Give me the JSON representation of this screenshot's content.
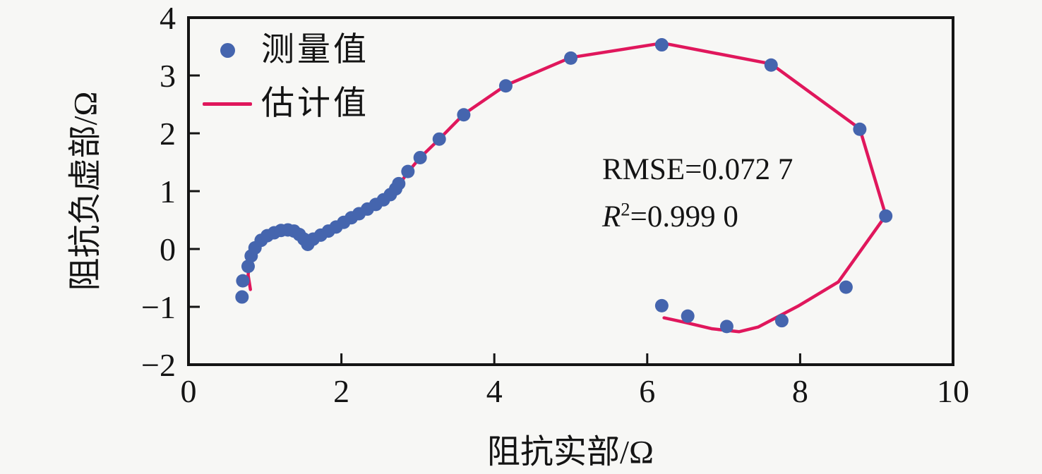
{
  "chart_data": {
    "type": "scatter",
    "title": "",
    "xlabel": "阻抗实部/Ω",
    "ylabel": "阻抗负虚部/Ω",
    "xlim": [
      0,
      10
    ],
    "ylim": [
      -2,
      4
    ],
    "x_ticks": [
      "0",
      "2",
      "4",
      "6",
      "8",
      "10"
    ],
    "x_tick_values": [
      0,
      2,
      4,
      6,
      8,
      10
    ],
    "y_ticks": [
      "-2",
      "-1",
      "0",
      "1",
      "2",
      "3",
      "4"
    ],
    "y_tick_values": [
      -2,
      -1,
      0,
      1,
      2,
      3,
      4
    ],
    "grid": false,
    "legend_position": "top-left",
    "annotations": [
      "RMSE=0.072 7",
      "R²=0.999 0"
    ],
    "series": [
      {
        "name": "测量值",
        "type": "scatter",
        "color": "#4565ae",
        "points": [
          [
            0.7,
            -0.83
          ],
          [
            0.71,
            -0.55
          ],
          [
            0.78,
            -0.3
          ],
          [
            0.82,
            -0.12
          ],
          [
            0.87,
            0.02
          ],
          [
            0.95,
            0.15
          ],
          [
            1.03,
            0.23
          ],
          [
            1.12,
            0.28
          ],
          [
            1.21,
            0.32
          ],
          [
            1.3,
            0.33
          ],
          [
            1.38,
            0.31
          ],
          [
            1.45,
            0.25
          ],
          [
            1.51,
            0.17
          ],
          [
            1.56,
            0.08
          ],
          [
            1.63,
            0.17
          ],
          [
            1.73,
            0.24
          ],
          [
            1.83,
            0.31
          ],
          [
            1.93,
            0.38
          ],
          [
            2.03,
            0.46
          ],
          [
            2.13,
            0.54
          ],
          [
            2.23,
            0.61
          ],
          [
            2.34,
            0.69
          ],
          [
            2.45,
            0.77
          ],
          [
            2.55,
            0.85
          ],
          [
            2.64,
            0.94
          ],
          [
            2.71,
            1.04
          ],
          [
            2.75,
            1.13
          ],
          [
            2.87,
            1.34
          ],
          [
            3.03,
            1.58
          ],
          [
            3.28,
            1.9
          ],
          [
            3.6,
            2.32
          ],
          [
            4.15,
            2.82
          ],
          [
            5.0,
            3.3
          ],
          [
            6.19,
            3.53
          ],
          [
            7.62,
            3.18
          ],
          [
            8.78,
            2.07
          ],
          [
            9.12,
            0.57
          ],
          [
            8.6,
            -0.66
          ],
          [
            7.76,
            -1.24
          ],
          [
            7.04,
            -1.34
          ],
          [
            6.53,
            -1.16
          ],
          [
            6.19,
            -0.98
          ]
        ]
      },
      {
        "name": "估计值",
        "type": "line",
        "color": "#e0175c",
        "points": [
          [
            0.81,
            -0.7
          ],
          [
            0.78,
            -0.45
          ],
          [
            0.8,
            -0.22
          ],
          [
            0.85,
            -0.03
          ],
          [
            0.93,
            0.12
          ],
          [
            1.03,
            0.24
          ],
          [
            1.14,
            0.31
          ],
          [
            1.26,
            0.33
          ],
          [
            1.37,
            0.29
          ],
          [
            1.47,
            0.2
          ],
          [
            1.56,
            0.06
          ],
          [
            1.62,
            0.12
          ],
          [
            1.7,
            0.21
          ],
          [
            1.83,
            0.31
          ],
          [
            2.0,
            0.44
          ],
          [
            2.18,
            0.57
          ],
          [
            2.36,
            0.7
          ],
          [
            2.54,
            0.84
          ],
          [
            2.66,
            0.96
          ],
          [
            2.75,
            1.1
          ],
          [
            2.87,
            1.33
          ],
          [
            3.03,
            1.58
          ],
          [
            3.28,
            1.9
          ],
          [
            3.6,
            2.33
          ],
          [
            4.15,
            2.83
          ],
          [
            5.0,
            3.31
          ],
          [
            6.2,
            3.56
          ],
          [
            7.62,
            3.2
          ],
          [
            8.78,
            2.08
          ],
          [
            9.12,
            0.58
          ],
          [
            8.5,
            -0.57
          ],
          [
            7.97,
            -0.99
          ],
          [
            7.45,
            -1.35
          ],
          [
            7.2,
            -1.43
          ],
          [
            6.85,
            -1.38
          ],
          [
            6.5,
            -1.27
          ],
          [
            6.22,
            -1.19
          ]
        ]
      }
    ]
  },
  "legend": {
    "measured": "测量值",
    "estimated": "估计值"
  },
  "annotation": {
    "rmse": "RMSE=0.072 7",
    "r2_prefix": "R",
    "r2_sup": "2",
    "r2_rest": "=0.999 0"
  },
  "colors": {
    "measured_dot": "#4565ae",
    "estimated_line": "#e0175c",
    "frame": "#141414",
    "background": "#f7f7f5"
  }
}
